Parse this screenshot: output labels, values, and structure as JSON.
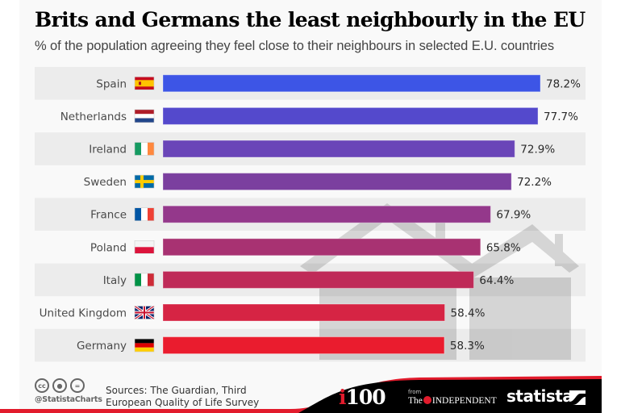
{
  "header": {
    "title": "Brits and Germans the least neighbourly in the EU",
    "subtitle": "% of the population agreeing they feel close to their neighbours in selected E.U. countries"
  },
  "chart_data": {
    "type": "bar",
    "orientation": "horizontal",
    "title": "Brits and Germans the least neighbourly in the EU",
    "subtitle": "% of the population agreeing they feel close to their neighbours in selected E.U. countries",
    "xlabel": "",
    "ylabel": "",
    "unit": "%",
    "grid": false,
    "legend": "none",
    "categories": [
      "Spain",
      "Netherlands",
      "Ireland",
      "Sweden",
      "France",
      "Poland",
      "Italy",
      "United Kingdom",
      "Germany"
    ],
    "values": [
      78.2,
      77.7,
      72.9,
      72.2,
      67.9,
      65.8,
      64.4,
      58.4,
      58.3
    ],
    "value_labels": [
      "78.2%",
      "77.7%",
      "72.9%",
      "72.2%",
      "67.9%",
      "65.8%",
      "64.4%",
      "58.4%",
      "58.3%"
    ],
    "flags": [
      "spain-flag",
      "netherlands-flag",
      "ireland-flag",
      "sweden-flag",
      "france-flag",
      "poland-flag",
      "italy-flag",
      "uk-flag",
      "germany-flag"
    ],
    "bar_colors": [
      "#3d55e6",
      "#5449cc",
      "#6a45b8",
      "#7b3f9f",
      "#94388b",
      "#a83272",
      "#bf2a58",
      "#d62444",
      "#ea1c2e"
    ],
    "xlim": [
      0,
      100
    ]
  },
  "footer": {
    "handle": "@StatistaCharts",
    "license_icons": [
      "cc-icon",
      "attribution-icon",
      "no-derivatives-icon"
    ],
    "license_glyphs": [
      "cc",
      "●",
      "="
    ],
    "sources": "Sources: The Guardian, Third European Quality of Life Survey",
    "partner_i": "i",
    "partner_100": "100",
    "partner_from": "from",
    "partner_the": "The",
    "partner_name": "INDEPENDENT",
    "brand": "statista"
  },
  "colors": {
    "background": "#f9f9f9",
    "band": "#ececec",
    "footer_black": "#000000",
    "footer_red": "#e21b2c"
  }
}
